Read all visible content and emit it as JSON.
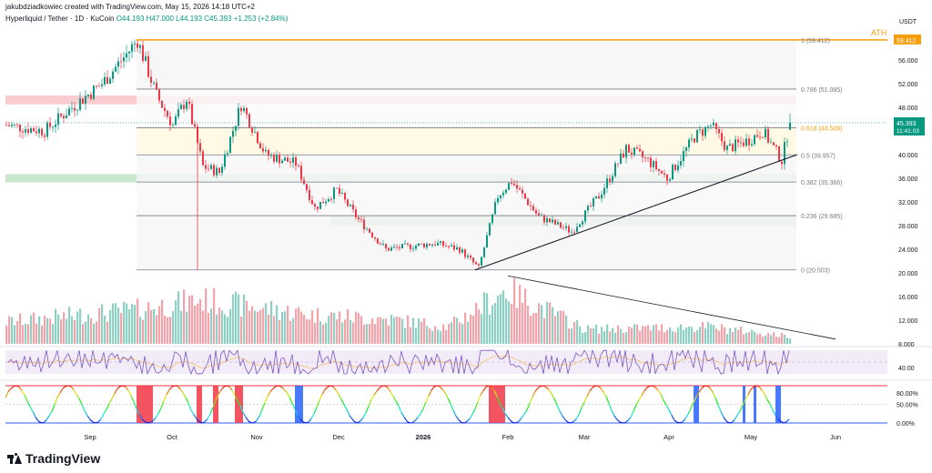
{
  "header": {
    "text": "jakubdziadkowiec created with TradingView.com, May 15, 2026 14:18 UTC+2"
  },
  "legend": {
    "symbol": "Hyperliquid / Tether · 1D · KuCoin",
    "o": "O44.193",
    "h": "H47.000",
    "l": "L44.193",
    "c": "C45.393",
    "chg": "+1.253 (+2.84%)"
  },
  "currency": "USDT",
  "ath_label": "ATH",
  "last_price": {
    "value": "45.393",
    "countdown": "11:41:03",
    "color": "#089981"
  },
  "ath_price": {
    "value": "59.412",
    "color": "#f59e0b"
  },
  "price_ticks": [
    "56.000",
    "52.000",
    "48.000",
    "44.000",
    "40.000",
    "36.000",
    "32.000",
    "28.000",
    "24.000",
    "20.000",
    "16.000",
    "12.000",
    "8.000"
  ],
  "rsi_tick": "40.00",
  "stoch_ticks": [
    "80.00%",
    "50.00%",
    "0.00%"
  ],
  "time_ticks": [
    "Sep",
    "Oct",
    "Nov",
    "Dec",
    "2026",
    "Feb",
    "Mar",
    "Apr",
    "May",
    "Jun"
  ],
  "fib_levels": [
    {
      "label": "1 (59.412)",
      "price": 59.412
    },
    {
      "label": "0.786 (51.085)",
      "price": 51.085
    },
    {
      "label": "0.618 (44.549)",
      "price": 44.549
    },
    {
      "label": "0.5 (39.957)",
      "price": 39.957
    },
    {
      "label": "0.382 (35.366)",
      "price": 35.366
    },
    {
      "label": "0.236 (29.685)",
      "price": 29.685
    },
    {
      "label": "0 (20.503)",
      "price": 20.503
    }
  ],
  "colors": {
    "up": "#089981",
    "down": "#f23645",
    "fib": "#787b86",
    "ath": "#f59e0b",
    "rsi": "#7e57c2",
    "rsi_band": "#ede7f6",
    "trend": "#131722"
  },
  "footer": {
    "brand": "TradingView"
  },
  "chart_data": {
    "type": "candlestick",
    "interval": "1D",
    "ylim": [
      8,
      60
    ],
    "zones": [
      {
        "kind": "resistance",
        "from": 48.5,
        "to": 50.0,
        "color": "#f8bbc0"
      },
      {
        "kind": "support",
        "from": 35.3,
        "to": 36.7,
        "color": "#b8e0c0"
      },
      {
        "kind": "support",
        "from": 28.0,
        "to": 29.7,
        "color": "#c8e6c9"
      }
    ],
    "trendlines": [
      {
        "kind": "support",
        "from": {
          "date": "2026-01-20",
          "price": 20.5
        },
        "to": {
          "date": "2026-05-18",
          "price": 40.0
        }
      },
      {
        "kind": "volume-resistance",
        "from": {
          "date": "2026-02-01",
          "volume_level": 19.5
        },
        "to": {
          "date": "2026-06-01",
          "volume_level": 8.8
        }
      }
    ],
    "anchors": [
      {
        "date": "2025-08-01",
        "price": 45.0
      },
      {
        "date": "2025-08-15",
        "price": 44.0
      },
      {
        "date": "2025-08-25",
        "price": 48.0
      },
      {
        "date": "2025-09-05",
        "price": 52.0
      },
      {
        "date": "2025-09-14",
        "price": 57.0
      },
      {
        "date": "2025-09-18",
        "price": 59.4
      },
      {
        "date": "2025-09-25",
        "price": 50.0
      },
      {
        "date": "2025-10-01",
        "price": 45.0
      },
      {
        "date": "2025-10-06",
        "price": 49.5
      },
      {
        "date": "2025-10-12",
        "price": 38.0
      },
      {
        "date": "2025-10-18",
        "price": 37.0
      },
      {
        "date": "2025-10-26",
        "price": 48.5
      },
      {
        "date": "2025-11-04",
        "price": 40.0
      },
      {
        "date": "2025-11-15",
        "price": 38.5
      },
      {
        "date": "2025-11-22",
        "price": 31.0
      },
      {
        "date": "2025-11-30",
        "price": 34.0
      },
      {
        "date": "2025-12-08",
        "price": 29.0
      },
      {
        "date": "2025-12-18",
        "price": 24.0
      },
      {
        "date": "2026-01-05",
        "price": 25.0
      },
      {
        "date": "2026-01-14",
        "price": 24.0
      },
      {
        "date": "2026-01-21",
        "price": 20.8
      },
      {
        "date": "2026-01-28",
        "price": 33.0
      },
      {
        "date": "2026-02-02",
        "price": 35.5
      },
      {
        "date": "2026-02-12",
        "price": 29.5
      },
      {
        "date": "2026-02-24",
        "price": 27.0
      },
      {
        "date": "2026-03-06",
        "price": 33.0
      },
      {
        "date": "2026-03-16",
        "price": 41.0
      },
      {
        "date": "2026-03-24",
        "price": 39.0
      },
      {
        "date": "2026-03-31",
        "price": 36.0
      },
      {
        "date": "2026-04-10",
        "price": 43.0
      },
      {
        "date": "2026-04-16",
        "price": 45.0
      },
      {
        "date": "2026-04-22",
        "price": 41.0
      },
      {
        "date": "2026-04-30",
        "price": 42.5
      },
      {
        "date": "2026-05-05",
        "price": 44.0
      },
      {
        "date": "2026-05-12",
        "price": 39.0
      },
      {
        "date": "2026-05-15",
        "price": 45.393
      }
    ],
    "volume_anchors": [
      {
        "date": "2025-08-01",
        "volume": 12.5
      },
      {
        "date": "2025-09-18",
        "volume": 15.0
      },
      {
        "date": "2025-10-11",
        "volume": 17.0
      },
      {
        "date": "2025-11-20",
        "volume": 14.0
      },
      {
        "date": "2025-12-20",
        "volume": 13.0
      },
      {
        "date": "2026-01-10",
        "volume": 11.5
      },
      {
        "date": "2026-01-31",
        "volume": 19.0
      },
      {
        "date": "2026-03-01",
        "volume": 11.0
      },
      {
        "date": "2026-04-15",
        "volume": 11.5
      },
      {
        "date": "2026-05-15",
        "volume": 9.5
      }
    ]
  }
}
